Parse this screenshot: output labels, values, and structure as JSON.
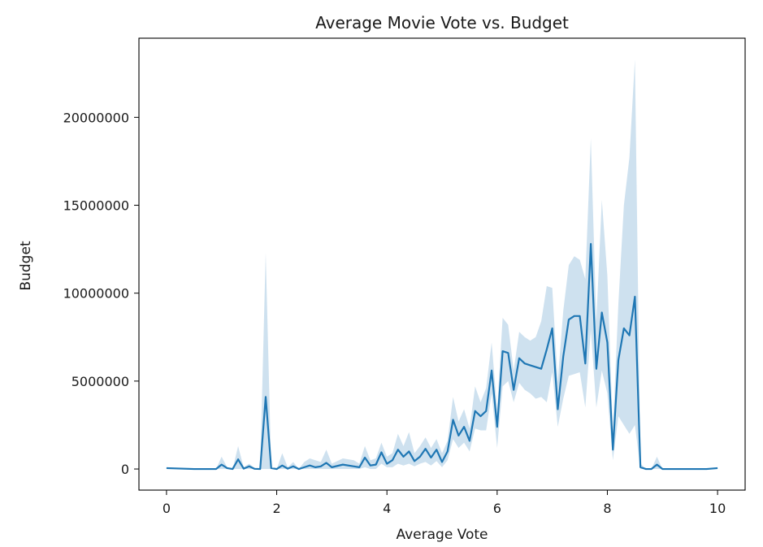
{
  "chart_data": {
    "type": "line",
    "title": "Average Movie Vote vs. Budget",
    "xlabel": "Average Vote",
    "ylabel": "Budget",
    "xlim": [
      -0.5,
      10.5
    ],
    "ylim": [
      -1200000,
      24500000
    ],
    "xticks": [
      0,
      2,
      4,
      6,
      8,
      10
    ],
    "xtick_labels": [
      "0",
      "2",
      "4",
      "6",
      "8",
      "10"
    ],
    "yticks": [
      0,
      5000000,
      10000000,
      15000000,
      20000000
    ],
    "ytick_labels": [
      "0",
      "5000000",
      "10000000",
      "15000000",
      "20000000"
    ],
    "grid": false,
    "colors": {
      "line": "#1f77b4",
      "band": "#1f77b4",
      "axes": "#000000"
    },
    "series": [
      {
        "x": [
          0,
          0.5,
          0.9,
          1.0,
          1.1,
          1.2,
          1.3,
          1.4,
          1.5,
          1.6,
          1.7,
          1.8,
          1.9,
          2.0,
          2.1,
          2.2,
          2.3,
          2.4,
          2.5,
          2.6,
          2.7,
          2.8,
          2.9,
          3.0,
          3.2,
          3.4,
          3.5,
          3.6,
          3.7,
          3.8,
          3.9,
          4.0,
          4.1,
          4.2,
          4.3,
          4.4,
          4.5,
          4.6,
          4.7,
          4.8,
          4.9,
          5.0,
          5.1,
          5.2,
          5.3,
          5.4,
          5.5,
          5.6,
          5.7,
          5.8,
          5.9,
          6.0,
          6.1,
          6.2,
          6.3,
          6.4,
          6.5,
          6.6,
          6.7,
          6.8,
          6.9,
          7.0,
          7.1,
          7.2,
          7.3,
          7.4,
          7.5,
          7.6,
          7.7,
          7.8,
          7.9,
          8.0,
          8.1,
          8.2,
          8.3,
          8.4,
          8.5,
          8.6,
          8.7,
          8.8,
          8.9,
          9.0,
          9.2,
          9.3,
          9.5,
          9.6,
          9.8,
          10.0
        ],
        "y": [
          50000,
          0,
          0,
          250000,
          50000,
          0,
          550000,
          20000,
          150000,
          10000,
          0,
          4100000,
          50000,
          0,
          200000,
          20000,
          150000,
          0,
          100000,
          200000,
          100000,
          150000,
          350000,
          100000,
          250000,
          150000,
          100000,
          650000,
          200000,
          250000,
          950000,
          300000,
          500000,
          1100000,
          700000,
          1000000,
          450000,
          700000,
          1150000,
          650000,
          1100000,
          400000,
          1000000,
          2800000,
          1900000,
          2400000,
          1600000,
          3300000,
          3000000,
          3300000,
          5600000,
          2400000,
          6700000,
          6600000,
          4500000,
          6300000,
          6000000,
          5900000,
          5800000,
          5700000,
          6800000,
          8000000,
          3400000,
          6400000,
          8500000,
          8700000,
          8700000,
          6000000,
          12800000,
          5700000,
          8900000,
          7200000,
          1100000,
          6200000,
          8000000,
          7600000,
          9800000,
          100000,
          0,
          0,
          250000,
          0,
          0,
          0,
          0,
          0,
          0,
          50000
        ],
        "lower": [
          0,
          0,
          0,
          0,
          0,
          0,
          0,
          0,
          0,
          0,
          0,
          0,
          0,
          0,
          0,
          0,
          0,
          0,
          0,
          0,
          0,
          0,
          0,
          0,
          0,
          0,
          0,
          100000,
          0,
          0,
          300000,
          100000,
          100000,
          300000,
          200000,
          300000,
          150000,
          300000,
          400000,
          200000,
          450000,
          100000,
          500000,
          1700000,
          1200000,
          1500000,
          1000000,
          2300000,
          2200000,
          2200000,
          4300000,
          1200000,
          4700000,
          5000000,
          3800000,
          4900000,
          4500000,
          4300000,
          4000000,
          4100000,
          3800000,
          5500000,
          2400000,
          4000000,
          5300000,
          5400000,
          5500000,
          3500000,
          7900000,
          3500000,
          5600000,
          4300000,
          500000,
          3000000,
          2500000,
          2000000,
          2500000,
          0,
          0,
          0,
          0,
          0,
          0,
          0,
          0,
          0,
          0,
          0
        ],
        "upper": [
          100000,
          0,
          0,
          700000,
          100000,
          0,
          1300000,
          100000,
          300000,
          50000,
          0,
          12300000,
          100000,
          0,
          900000,
          100000,
          400000,
          0,
          400000,
          600000,
          500000,
          400000,
          1100000,
          300000,
          600000,
          500000,
          300000,
          1300000,
          500000,
          600000,
          1500000,
          700000,
          900000,
          2000000,
          1300000,
          2100000,
          900000,
          1300000,
          1800000,
          1200000,
          1700000,
          900000,
          1600000,
          4100000,
          2700000,
          3400000,
          2300000,
          4700000,
          3800000,
          4600000,
          7200000,
          3400000,
          8600000,
          8200000,
          5600000,
          7800000,
          7500000,
          7300000,
          7500000,
          8400000,
          10400000,
          10300000,
          5000000,
          9000000,
          11600000,
          12100000,
          11900000,
          10800000,
          18800000,
          8400000,
          15300000,
          11000000,
          2200000,
          9400000,
          15000000,
          17700000,
          23300000,
          300000,
          0,
          0,
          700000,
          0,
          0,
          0,
          0,
          0,
          0,
          100000
        ]
      }
    ]
  }
}
